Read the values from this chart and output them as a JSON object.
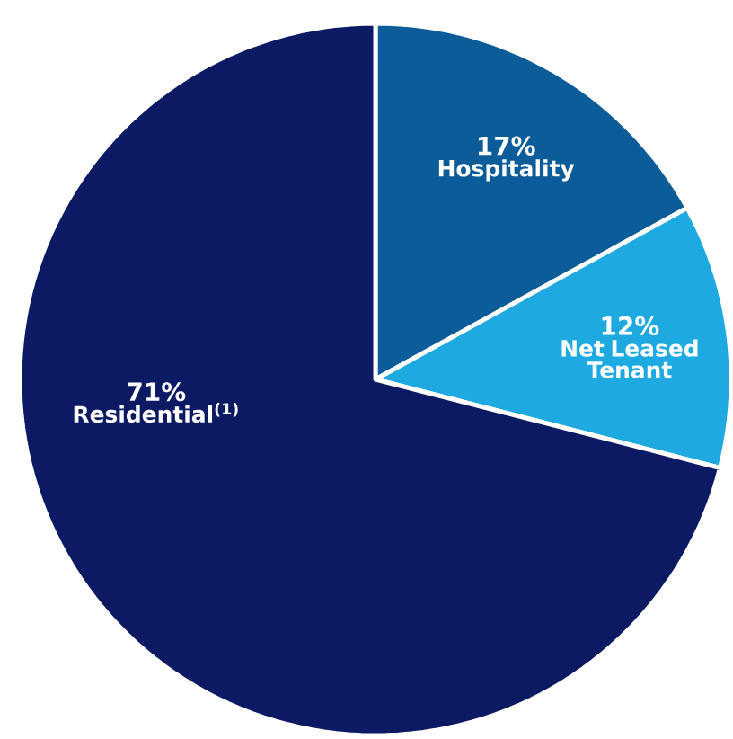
{
  "chart_data": {
    "type": "pie",
    "categories": [
      "Hospitality",
      "Net Leased Tenant",
      "Residential$^{(1)}$"
    ],
    "values": [
      17,
      12,
      71
    ],
    "value_labels": [
      "17%",
      "12%",
      "71%"
    ],
    "colors": [
      "#0b5c99",
      "#1ea9e1",
      "#0c1a64"
    ]
  }
}
